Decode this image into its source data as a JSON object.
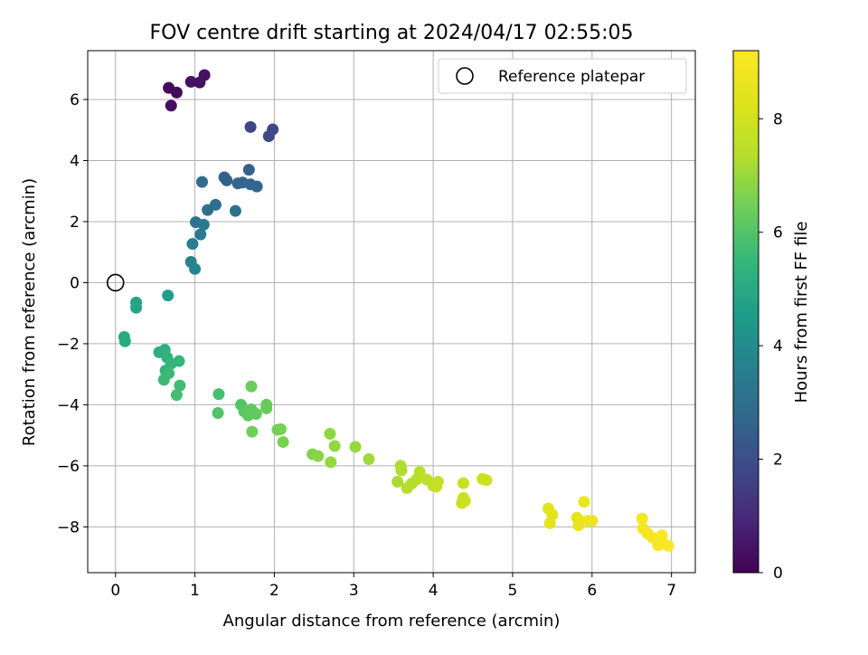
{
  "chart_data": {
    "type": "scatter",
    "title": "FOV centre drift starting at 2024/04/17 02:55:05",
    "xlabel": "Angular distance from reference (arcmin)",
    "ylabel": "Rotation from reference (arcmin)",
    "xlim": [
      -0.35,
      7.3
    ],
    "ylim": [
      -9.5,
      7.6
    ],
    "xticks": [
      "0",
      "1",
      "2",
      "3",
      "4",
      "5",
      "6",
      "7"
    ],
    "yticks": [
      "6",
      "4",
      "2",
      "0",
      "−2",
      "−4",
      "−6",
      "−8"
    ],
    "grid": true,
    "legend": {
      "position": "top-right",
      "label": "Reference platepar"
    },
    "reference_point": {
      "x": 0,
      "y": 0,
      "marker": "open-circle"
    },
    "colorbar": {
      "label": "Hours from first FF file",
      "range": [
        0,
        9.2
      ],
      "ticks": [
        "0",
        "2",
        "4",
        "6",
        "8"
      ],
      "colormap": "viridis"
    },
    "points": [
      {
        "x": 0.67,
        "y": 6.38,
        "c": 0.2
      },
      {
        "x": 0.77,
        "y": 6.23,
        "c": 0.25
      },
      {
        "x": 0.95,
        "y": 6.58,
        "c": 0.35
      },
      {
        "x": 1.06,
        "y": 6.56,
        "c": 0.35
      },
      {
        "x": 1.12,
        "y": 6.8,
        "c": 0.4
      },
      {
        "x": 0.7,
        "y": 5.8,
        "c": 0.3
      },
      {
        "x": 1.7,
        "y": 5.1,
        "c": 1.7
      },
      {
        "x": 1.93,
        "y": 4.8,
        "c": 1.8
      },
      {
        "x": 1.98,
        "y": 5.02,
        "c": 1.8
      },
      {
        "x": 1.68,
        "y": 3.7,
        "c": 2.5
      },
      {
        "x": 1.37,
        "y": 3.45,
        "c": 2.6
      },
      {
        "x": 1.4,
        "y": 3.35,
        "c": 2.6
      },
      {
        "x": 1.54,
        "y": 3.25,
        "c": 2.7
      },
      {
        "x": 1.6,
        "y": 3.28,
        "c": 2.7
      },
      {
        "x": 1.7,
        "y": 3.22,
        "c": 2.7
      },
      {
        "x": 1.78,
        "y": 3.15,
        "c": 2.75
      },
      {
        "x": 1.09,
        "y": 3.3,
        "c": 2.9
      },
      {
        "x": 1.26,
        "y": 2.55,
        "c": 3.0
      },
      {
        "x": 1.16,
        "y": 2.38,
        "c": 3.05
      },
      {
        "x": 1.51,
        "y": 2.35,
        "c": 3.1
      },
      {
        "x": 1.01,
        "y": 1.98,
        "c": 3.2
      },
      {
        "x": 1.11,
        "y": 1.9,
        "c": 3.3
      },
      {
        "x": 1.07,
        "y": 1.58,
        "c": 3.4
      },
      {
        "x": 0.97,
        "y": 1.27,
        "c": 3.5
      },
      {
        "x": 0.95,
        "y": 0.68,
        "c": 3.7
      },
      {
        "x": 1.0,
        "y": 0.45,
        "c": 3.8
      },
      {
        "x": 0.66,
        "y": -0.42,
        "c": 4.6
      },
      {
        "x": 0.26,
        "y": -0.65,
        "c": 4.8
      },
      {
        "x": 0.26,
        "y": -0.82,
        "c": 4.85
      },
      {
        "x": 0.11,
        "y": -1.78,
        "c": 5.0
      },
      {
        "x": 0.12,
        "y": -1.92,
        "c": 5.05
      },
      {
        "x": 0.55,
        "y": -2.28,
        "c": 5.2
      },
      {
        "x": 0.62,
        "y": -2.2,
        "c": 5.25
      },
      {
        "x": 0.65,
        "y": -2.45,
        "c": 5.3
      },
      {
        "x": 0.7,
        "y": -2.65,
        "c": 5.4
      },
      {
        "x": 0.63,
        "y": -2.88,
        "c": 5.4
      },
      {
        "x": 0.8,
        "y": -2.57,
        "c": 5.5
      },
      {
        "x": 0.61,
        "y": -3.18,
        "c": 5.6
      },
      {
        "x": 0.67,
        "y": -2.97,
        "c": 5.6
      },
      {
        "x": 0.81,
        "y": -3.37,
        "c": 5.7
      },
      {
        "x": 0.77,
        "y": -3.68,
        "c": 5.75
      },
      {
        "x": 1.3,
        "y": -3.65,
        "c": 5.85
      },
      {
        "x": 1.29,
        "y": -4.27,
        "c": 5.95
      },
      {
        "x": 1.58,
        "y": -4.0,
        "c": 6.0
      },
      {
        "x": 1.62,
        "y": -4.22,
        "c": 6.1
      },
      {
        "x": 1.67,
        "y": -4.35,
        "c": 6.15
      },
      {
        "x": 1.71,
        "y": -4.15,
        "c": 6.2
      },
      {
        "x": 1.77,
        "y": -4.3,
        "c": 6.25
      },
      {
        "x": 1.9,
        "y": -4.0,
        "c": 6.3
      },
      {
        "x": 1.9,
        "y": -4.12,
        "c": 6.35
      },
      {
        "x": 1.71,
        "y": -3.4,
        "c": 6.4
      },
      {
        "x": 1.72,
        "y": -4.88,
        "c": 6.45
      },
      {
        "x": 2.04,
        "y": -4.82,
        "c": 6.5
      },
      {
        "x": 2.08,
        "y": -4.8,
        "c": 6.55
      },
      {
        "x": 2.11,
        "y": -5.22,
        "c": 6.6
      },
      {
        "x": 2.48,
        "y": -5.62,
        "c": 6.7
      },
      {
        "x": 2.55,
        "y": -5.68,
        "c": 6.8
      },
      {
        "x": 2.7,
        "y": -4.95,
        "c": 6.85
      },
      {
        "x": 2.76,
        "y": -5.35,
        "c": 6.9
      },
      {
        "x": 2.71,
        "y": -5.88,
        "c": 6.95
      },
      {
        "x": 3.02,
        "y": -5.38,
        "c": 7.0
      },
      {
        "x": 3.19,
        "y": -5.78,
        "c": 7.05
      },
      {
        "x": 3.55,
        "y": -6.52,
        "c": 7.2
      },
      {
        "x": 3.59,
        "y": -6.0,
        "c": 7.25
      },
      {
        "x": 3.6,
        "y": -6.15,
        "c": 7.3
      },
      {
        "x": 3.67,
        "y": -6.73,
        "c": 7.35
      },
      {
        "x": 3.73,
        "y": -6.58,
        "c": 7.4
      },
      {
        "x": 3.79,
        "y": -6.45,
        "c": 7.45
      },
      {
        "x": 3.83,
        "y": -6.2,
        "c": 7.5
      },
      {
        "x": 3.92,
        "y": -6.45,
        "c": 7.55
      },
      {
        "x": 4.0,
        "y": -6.65,
        "c": 7.6
      },
      {
        "x": 4.06,
        "y": -6.52,
        "c": 7.65
      },
      {
        "x": 4.04,
        "y": -6.68,
        "c": 7.7
      },
      {
        "x": 4.38,
        "y": -6.57,
        "c": 7.75
      },
      {
        "x": 4.38,
        "y": -7.05,
        "c": 7.8
      },
      {
        "x": 4.36,
        "y": -7.22,
        "c": 7.85
      },
      {
        "x": 4.4,
        "y": -7.15,
        "c": 7.85
      },
      {
        "x": 4.62,
        "y": -6.43,
        "c": 7.9
      },
      {
        "x": 4.67,
        "y": -6.47,
        "c": 7.9
      },
      {
        "x": 5.45,
        "y": -7.4,
        "c": 8.4
      },
      {
        "x": 5.47,
        "y": -7.88,
        "c": 8.45
      },
      {
        "x": 5.5,
        "y": -7.6,
        "c": 8.5
      },
      {
        "x": 5.81,
        "y": -7.7,
        "c": 8.55
      },
      {
        "x": 5.83,
        "y": -7.95,
        "c": 8.6
      },
      {
        "x": 5.85,
        "y": -7.82,
        "c": 8.6
      },
      {
        "x": 5.9,
        "y": -7.18,
        "c": 8.65
      },
      {
        "x": 5.95,
        "y": -7.8,
        "c": 8.7
      },
      {
        "x": 6.0,
        "y": -7.8,
        "c": 8.7
      },
      {
        "x": 6.63,
        "y": -7.73,
        "c": 8.9
      },
      {
        "x": 6.64,
        "y": -8.05,
        "c": 8.95
      },
      {
        "x": 6.7,
        "y": -8.22,
        "c": 9.0
      },
      {
        "x": 6.76,
        "y": -8.35,
        "c": 9.0
      },
      {
        "x": 6.83,
        "y": -8.6,
        "c": 9.05
      },
      {
        "x": 6.88,
        "y": -8.28,
        "c": 9.05
      },
      {
        "x": 6.9,
        "y": -8.55,
        "c": 9.1
      },
      {
        "x": 6.96,
        "y": -8.62,
        "c": 9.1
      }
    ]
  }
}
